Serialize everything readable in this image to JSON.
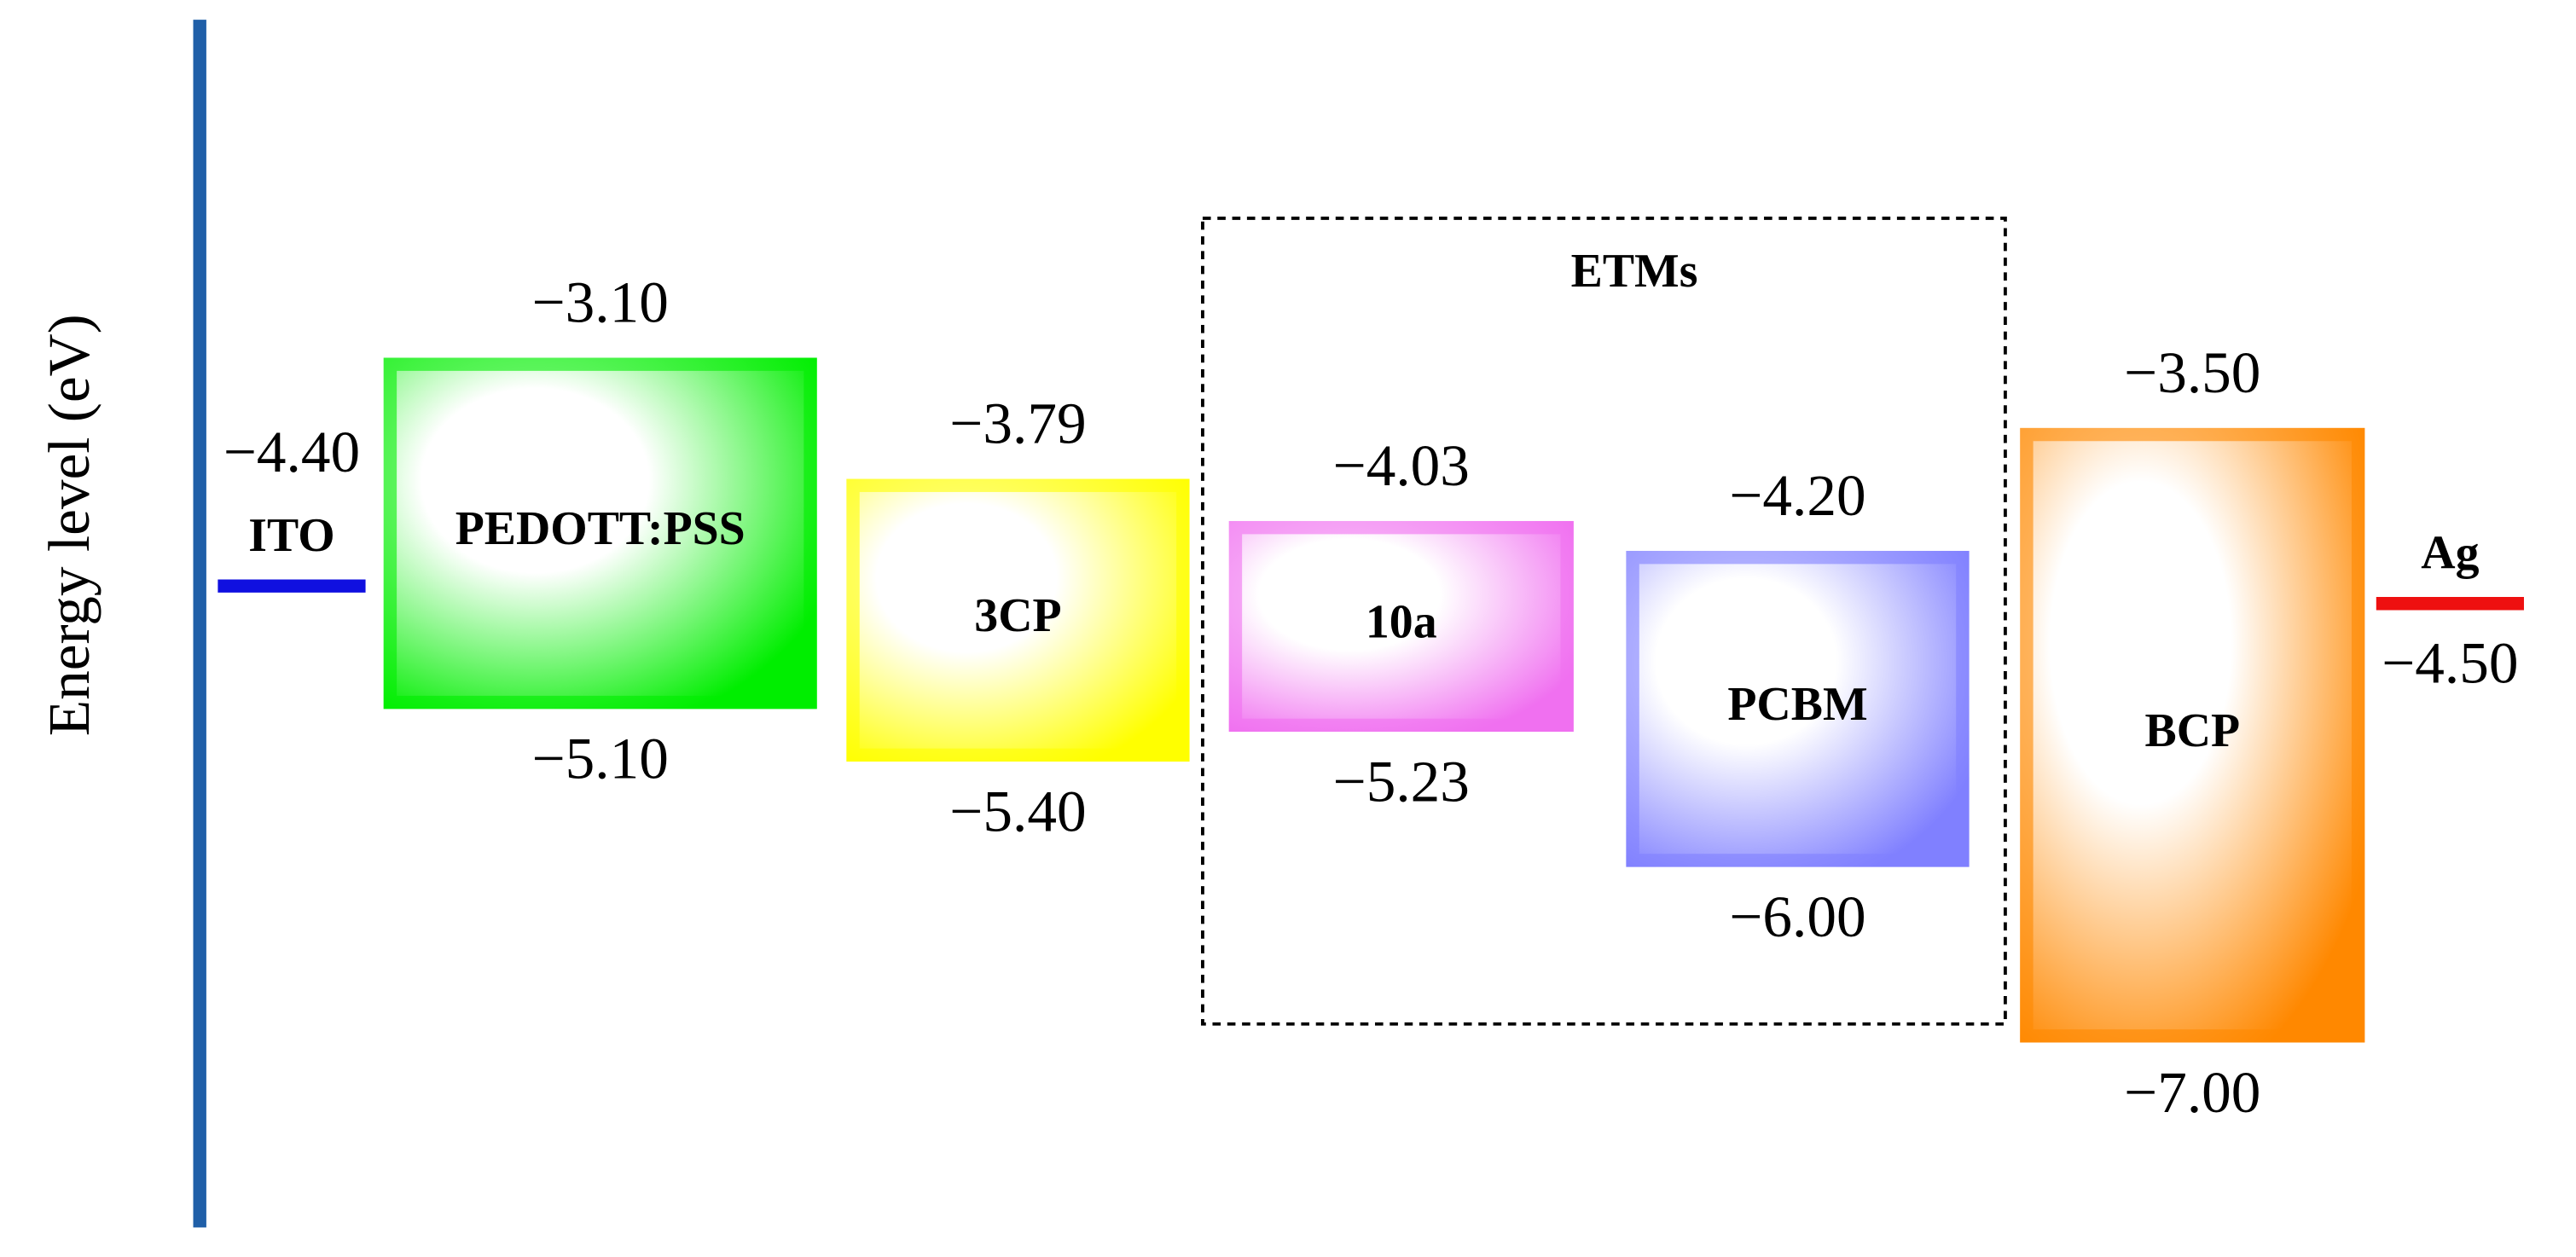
{
  "axis_label": "Energy level (eV)",
  "group": {
    "label": "ETMs"
  },
  "electrodes": [
    {
      "name": "ITO",
      "level": {
        "value": -4.4,
        "label": "−4.40"
      },
      "color": "#1010e0"
    },
    {
      "name": "Ag",
      "level": {
        "value": -4.5,
        "label": "−4.50"
      },
      "color": "#ee1010"
    }
  ],
  "layers": [
    {
      "name": "PEDOTT:PSS",
      "lumo": {
        "value": -3.1,
        "label": "−3.10"
      },
      "homo": {
        "value": -5.1,
        "label": "−5.10"
      },
      "color": "#00ee00"
    },
    {
      "name": "3CP",
      "lumo": {
        "value": -3.79,
        "label": "−3.79"
      },
      "homo": {
        "value": -5.4,
        "label": "−5.40"
      },
      "color": "#ffff00"
    },
    {
      "name": "10a",
      "lumo": {
        "value": -4.03,
        "label": "−4.03"
      },
      "homo": {
        "value": -5.23,
        "label": "−5.23"
      },
      "color": "#f070f0"
    },
    {
      "name": "PCBM",
      "lumo": {
        "value": -4.2,
        "label": "−4.20"
      },
      "homo": {
        "value": -6.0,
        "label": "−6.00"
      },
      "color": "#8080ff"
    },
    {
      "name": "BCP",
      "lumo": {
        "value": -3.5,
        "label": "−3.50"
      },
      "homo": {
        "value": -7.0,
        "label": "−7.00"
      },
      "color": "#ff8800"
    }
  ]
}
